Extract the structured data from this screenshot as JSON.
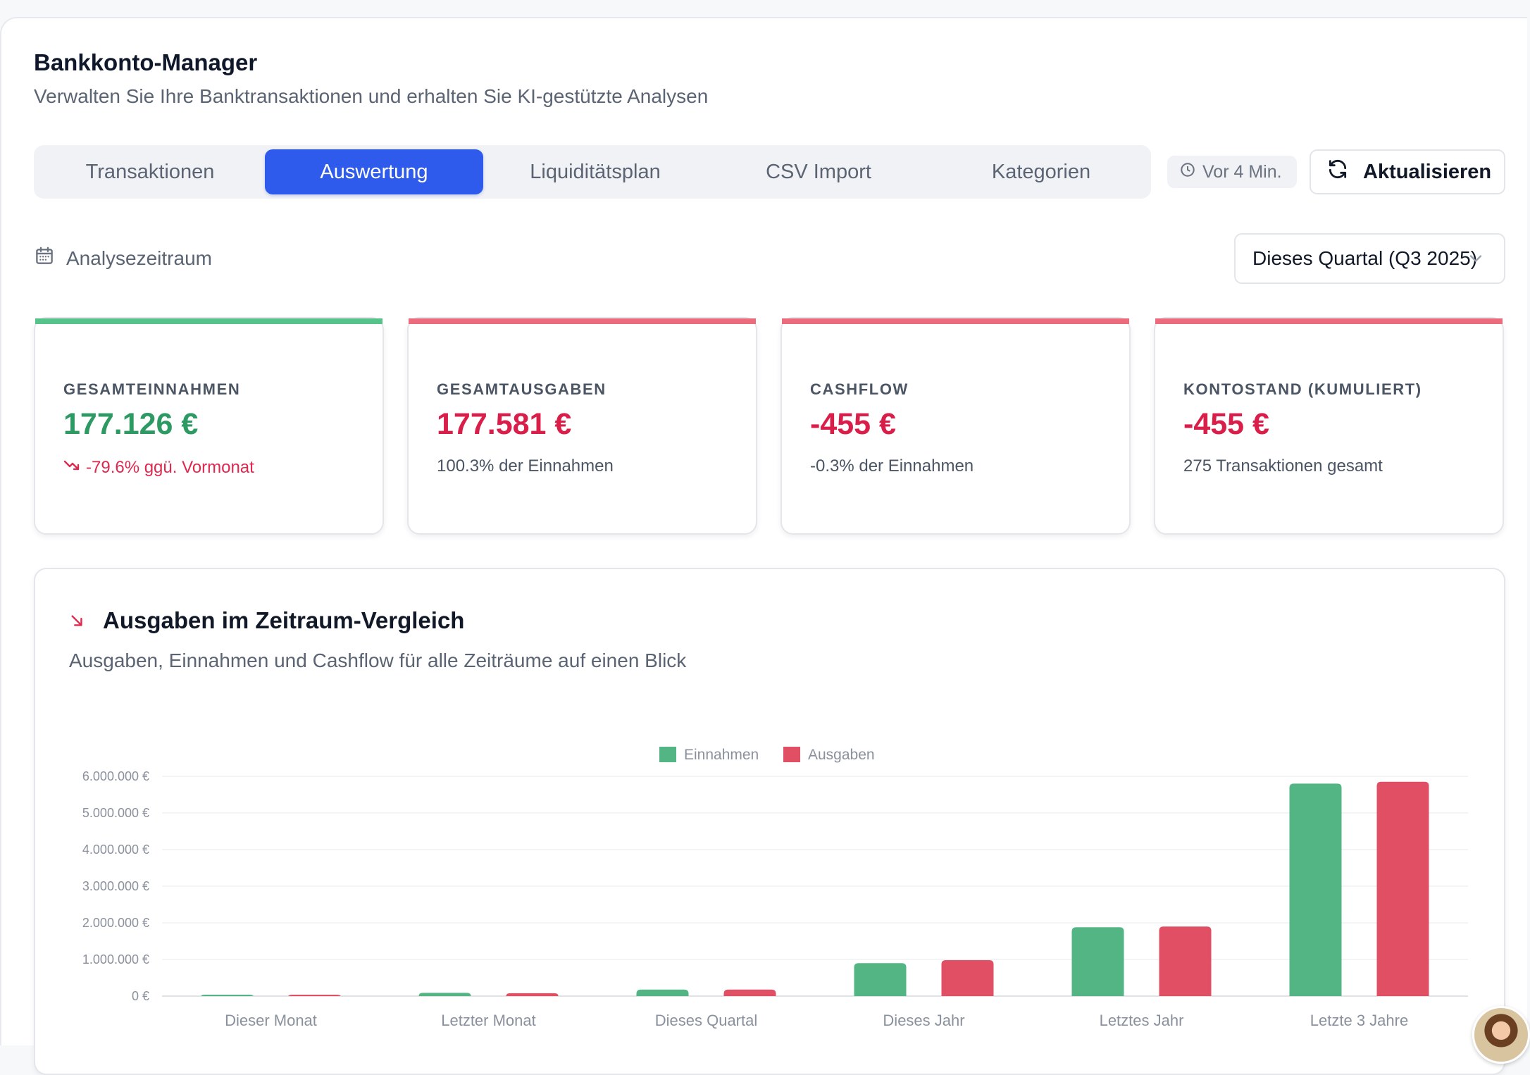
{
  "header": {
    "title": "Bankkonto-Manager",
    "subtitle": "Verwalten Sie Ihre Banktransaktionen und erhalten Sie KI-gestützte Analysen"
  },
  "tabs": [
    {
      "label": "Transaktionen",
      "active": false
    },
    {
      "label": "Auswertung",
      "active": true
    },
    {
      "label": "Liquiditätsplan",
      "active": false
    },
    {
      "label": "CSV Import",
      "active": false
    },
    {
      "label": "Kategorien",
      "active": false
    }
  ],
  "toolbar": {
    "updated_label": "Vor 4 Min.",
    "refresh_label": "Aktualisieren"
  },
  "period": {
    "label": "Analysezeitraum",
    "selected": "Dieses Quartal (Q3 2025)"
  },
  "cards": [
    {
      "label": "GESAMTEINNAHMEN",
      "value": "177.126 €",
      "note": "-79.6% ggü. Vormonat",
      "accent": "#56c48a",
      "value_color": "#2e9a63",
      "note_color": "#e0284f"
    },
    {
      "label": "GESAMTAUSGABEN",
      "value": "177.581 €",
      "note": "100.3% der Einnahmen",
      "accent": "#ec6b7c",
      "value_color": "#d81e49",
      "note_color": "#4b5563"
    },
    {
      "label": "CASHFLOW",
      "value": "-455 €",
      "note": "-0.3% der Einnahmen",
      "accent": "#ec6b7c",
      "value_color": "#d81e49",
      "note_color": "#4b5563"
    },
    {
      "label": "KONTOSTAND (KUMULIERT)",
      "value": "-455 €",
      "note": "275 Transaktionen gesamt",
      "accent": "#ec6b7c",
      "value_color": "#d81e49",
      "note_color": "#4b5563"
    }
  ],
  "chart_section": {
    "title": "Ausgaben im Zeitraum-Vergleich",
    "subtitle": "Ausgaben, Einnahmen und Cashflow für alle Zeiträume auf einen Blick"
  },
  "chart_data": {
    "type": "bar",
    "categories": [
      "Dieser Monat",
      "Letzter Monat",
      "Dieses Quartal",
      "Dieses Jahr",
      "Letztes Jahr",
      "Letzte 3 Jahre"
    ],
    "series": [
      {
        "name": "Einnahmen",
        "color": "#52b583",
        "values": [
          8000,
          90000,
          177126,
          900000,
          1880000,
          5800000
        ]
      },
      {
        "name": "Ausgaben",
        "color": "#e04f64",
        "values": [
          35000,
          80000,
          177581,
          980000,
          1900000,
          5850000
        ]
      }
    ],
    "y_ticks": [
      "6.000.000 €",
      "5.000.000 €",
      "4.000.000 €",
      "3.000.000 €",
      "2.000.000 €",
      "1.000.000 €",
      "0 €"
    ],
    "ylim": [
      0,
      6000000
    ],
    "legend_position": "top-center",
    "grid": true
  }
}
